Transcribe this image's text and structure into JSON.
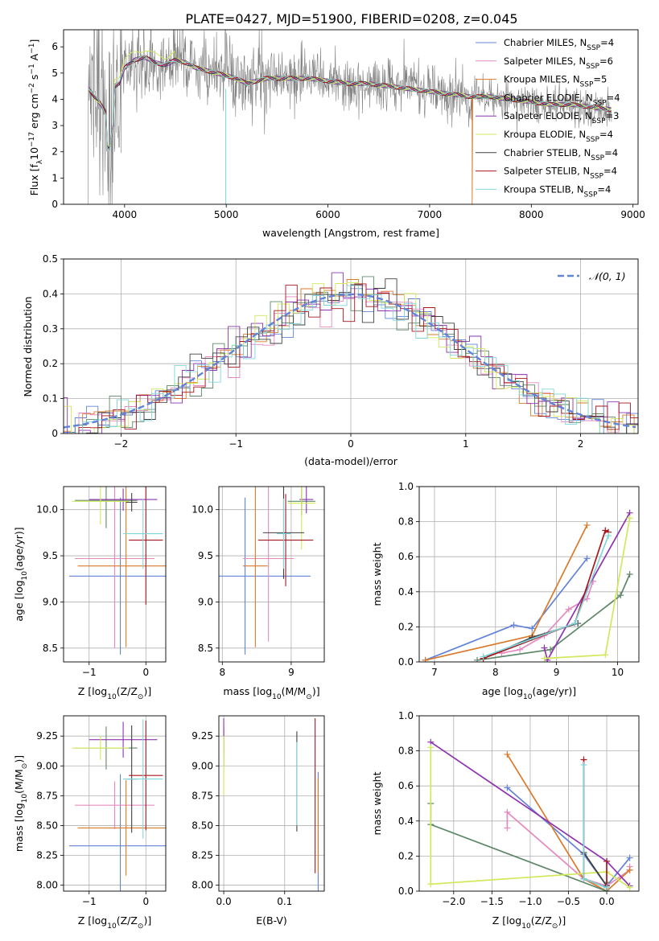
{
  "figure": {
    "title": "PLATE=0427, MJD=51900, FIBERID=0208, z=0.045"
  },
  "legend": {
    "entries": [
      {
        "label": "Chabrier MILES, N",
        "sub": "SSP",
        "n": "=4",
        "color": "#6283d8"
      },
      {
        "label": "Salpeter MILES, N",
        "sub": "SSP",
        "n": "=6",
        "color": "#e58ac1"
      },
      {
        "label": "Kroupa MILES, N",
        "sub": "SSP",
        "n": "=5",
        "color": "#d97a2a"
      },
      {
        "label": "Chabrier ELODIE, N",
        "sub": "SSP",
        "n": "=4",
        "color": "#5e8868"
      },
      {
        "label": "Salpeter ELODIE, N",
        "sub": "SSP",
        "n": "=3",
        "color": "#8e34b0"
      },
      {
        "label": "Kroupa ELODIE, N",
        "sub": "SSP",
        "n": "=4",
        "color": "#cfe95a"
      },
      {
        "label": "Chabrier STELIB, N",
        "sub": "SSP",
        "n": "=4",
        "color": "#404040"
      },
      {
        "label": "Salpeter STELIB, N",
        "sub": "SSP",
        "n": "=4",
        "color": "#a8171e"
      },
      {
        "label": "Kroupa STELIB, N",
        "sub": "SSP",
        "n": "=4",
        "color": "#7fd6da"
      }
    ]
  },
  "chart_data": [
    {
      "type": "line",
      "id": "spectrum",
      "xlabel": "wavelength [Angstrom, rest frame]",
      "ylabel": "Flux [f",
      "ylabel_sub": "λ",
      "ylabel_rest": "10",
      "ylabel_sup1": "−17",
      "ylabel_mid": " erg cm",
      "ylabel_sup2": "−2",
      "ylabel_s": " s",
      "ylabel_sup3": "−1",
      "ylabel_A": " A",
      "ylabel_sup4": "−1",
      "ylabel_end": "]",
      "xlim": [
        3400,
        9050
      ],
      "ylim": [
        0,
        6.65
      ],
      "xticks": [
        4000,
        5000,
        6000,
        7000,
        8000,
        9000
      ],
      "yticks": [
        0,
        1,
        2,
        3,
        4,
        5,
        6
      ],
      "data_color": "#808080",
      "model_points": {
        "x": [
          3650,
          3700,
          3750,
          3800,
          3850,
          3900,
          3950,
          4000,
          4100,
          4200,
          4300,
          4400,
          4500,
          4600,
          4700,
          4800,
          4900,
          5000,
          5100,
          5200,
          5300,
          5400,
          5500,
          5600,
          5800,
          6000,
          6200,
          6400,
          6600,
          6800,
          7000,
          7200,
          7400,
          7600,
          7800,
          8000,
          8200,
          8400,
          8600,
          8800
        ],
        "y": [
          4.4,
          4.1,
          3.9,
          3.6,
          3.3,
          4.5,
          4.6,
          5.2,
          5.5,
          5.6,
          5.4,
          5.3,
          5.5,
          5.4,
          5.2,
          5.1,
          5.0,
          4.9,
          4.8,
          4.6,
          4.7,
          4.8,
          4.8,
          4.8,
          4.8,
          4.7,
          4.6,
          4.6,
          4.5,
          4.4,
          4.3,
          4.2,
          4.1,
          4.1,
          4.0,
          3.9,
          3.8,
          3.8,
          3.7,
          3.6
        ]
      }
    },
    {
      "type": "histogram",
      "id": "residuals",
      "xlabel": "(data-model)/error",
      "ylabel": "Normed distribution",
      "xlim": [
        -2.5,
        2.5
      ],
      "ylim": [
        0,
        0.5
      ],
      "xticks": [
        -2,
        -1,
        0,
        1,
        2
      ],
      "yticks": [
        0.0,
        0.1,
        0.2,
        0.3,
        0.4,
        0.5
      ],
      "legend": {
        "label": "𝒩(0, 1)",
        "color": "#6283d8"
      },
      "bin_width": 0.1
    },
    {
      "type": "scatter",
      "id": "age-vs-z",
      "xlabel": "Z [log",
      "xlabel_sub": "10",
      "xlabel_rest": "(Z/Z",
      "xlabel_end": ")]",
      "ylabel": "age  [log",
      "ylabel_sub": "10",
      "ylabel_rest": "(age/yr)]",
      "xlim": [
        -1.45,
        0.35
      ],
      "ylim": [
        8.35,
        10.25
      ],
      "xticks": [
        -1,
        0
      ],
      "yticks": [
        8.5,
        9.0,
        9.5,
        10.0
      ],
      "points": [
        {
          "x": -0.45,
          "y": 9.28,
          "xerr": 0.9,
          "yerr": 0.85,
          "series": 0
        },
        {
          "x": -0.55,
          "y": 9.47,
          "xerr": 0.7,
          "yerr": 0.97,
          "series": 1
        },
        {
          "x": -0.35,
          "y": 9.39,
          "xerr": 0.85,
          "yerr": 0.88,
          "series": 2
        },
        {
          "x": -0.7,
          "y": 10.1,
          "xerr": 0.55,
          "yerr": 0.3,
          "series": 3
        },
        {
          "x": -0.4,
          "y": 10.11,
          "xerr": 0.6,
          "yerr": 0.12,
          "series": 4
        },
        {
          "x": -0.8,
          "y": 10.09,
          "xerr": 0.5,
          "yerr": 0.25,
          "series": 5
        },
        {
          "x": -0.25,
          "y": 10.08,
          "xerr": 0.1,
          "yerr": 0.1,
          "series": 6
        },
        {
          "x": 0.0,
          "y": 9.67,
          "xerr": 0.3,
          "yerr": 0.7,
          "series": 7
        },
        {
          "x": -0.05,
          "y": 9.74,
          "xerr": 0.35,
          "yerr": 0.38,
          "series": 8
        }
      ]
    },
    {
      "type": "scatter",
      "id": "age-vs-mass",
      "xlabel": "mass [log",
      "xlabel_sub": "10",
      "xlabel_rest": "(M/M",
      "xlabel_end": ")]",
      "xlim": [
        7.95,
        9.48
      ],
      "ylim": [
        8.35,
        10.25
      ],
      "xticks": [
        8,
        9
      ],
      "yticks": [
        8.5,
        9.0,
        9.5,
        10.0
      ],
      "points": [
        {
          "x": 8.33,
          "y": 9.28,
          "xerr": 0.95,
          "yerr": 0.85,
          "series": 0
        },
        {
          "x": 8.67,
          "y": 9.47,
          "xerr": 0.37,
          "yerr": 0.9,
          "series": 1
        },
        {
          "x": 8.48,
          "y": 9.39,
          "xerr": 0.18,
          "yerr": 0.88,
          "series": 2
        },
        {
          "x": 9.15,
          "y": 10.09,
          "xerr": 0.2,
          "yerr": 0.15,
          "series": 3
        },
        {
          "x": 9.22,
          "y": 10.11,
          "xerr": 0.1,
          "yerr": 0.15,
          "series": 4
        },
        {
          "x": 9.15,
          "y": 10.07,
          "xerr": 0.2,
          "yerr": 0.5,
          "series": 5
        },
        {
          "x": 8.89,
          "y": 9.75,
          "xerr": 0.3,
          "yerr": 0.5,
          "series": 6
        },
        {
          "x": 8.92,
          "y": 9.67,
          "xerr": 0.4,
          "yerr": 0.5,
          "series": 7
        },
        {
          "x": 8.89,
          "y": 9.74,
          "xerr": 0.1,
          "yerr": 0.38,
          "series": 8
        }
      ]
    },
    {
      "type": "line",
      "id": "mass-weight-vs-age",
      "xlabel": "age  [log",
      "xlabel_sub": "10",
      "xlabel_rest": "(age/yr)]",
      "ylabel": "mass weight",
      "xlim": [
        6.75,
        10.35
      ],
      "ylim": [
        0,
        1.0
      ],
      "xticks": [
        7,
        8,
        9,
        10
      ],
      "yticks": [
        0.0,
        0.2,
        0.4,
        0.6,
        0.8,
        1.0
      ],
      "series": [
        {
          "x": [
            6.85,
            8.3,
            8.6,
            9.5
          ],
          "y": [
            0.01,
            0.21,
            0.19,
            0.59
          ],
          "idx": 0
        },
        {
          "x": [
            8.1,
            8.4,
            8.8,
            9.2,
            9.5,
            9.6
          ],
          "y": [
            0.05,
            0.07,
            0.15,
            0.3,
            0.36,
            0.46
          ],
          "idx": 1
        },
        {
          "x": [
            6.85,
            8.6,
            9.5
          ],
          "y": [
            0.01,
            0.15,
            0.78
          ],
          "idx": 2
        },
        {
          "x": [
            7.7,
            8.9,
            10.05,
            10.2
          ],
          "y": [
            0.01,
            0.07,
            0.38,
            0.5
          ],
          "idx": 3
        },
        {
          "x": [
            8.8,
            8.85,
            10.2
          ],
          "y": [
            0.08,
            0.01,
            0.85
          ],
          "idx": 4
        },
        {
          "x": [
            8.8,
            9.8,
            10.2
          ],
          "y": [
            0.02,
            0.04,
            0.82
          ],
          "idx": 5
        },
        {
          "x": [
            7.8,
            8.6,
            9.35
          ],
          "y": [
            0.02,
            0.14,
            0.22
          ],
          "idx": 6
        },
        {
          "x": [
            7.8,
            9.3,
            9.8,
            9.85
          ],
          "y": [
            0.02,
            0.22,
            0.75,
            0.74
          ],
          "idx": 7
        },
        {
          "x": [
            7.8,
            9.3,
            9.85
          ],
          "y": [
            0.03,
            0.22,
            0.72
          ],
          "idx": 8
        }
      ]
    },
    {
      "type": "scatter",
      "id": "mass-vs-z",
      "xlabel": "Z [log",
      "xlabel_sub": "10",
      "xlabel_rest": "(Z/Z",
      "xlabel_end": ")]",
      "ylabel": "mass [log",
      "ylabel_sub": "10",
      "ylabel_rest": "(M/M",
      "ylabel_end": ")]",
      "xlim": [
        -1.45,
        0.35
      ],
      "ylim": [
        7.95,
        9.42
      ],
      "xticks": [
        -1,
        0
      ],
      "yticks": [
        8.0,
        8.25,
        8.5,
        8.75,
        9.0,
        9.25
      ],
      "points": [
        {
          "x": -0.45,
          "y": 8.33,
          "xerr": 0.9,
          "yerr": 0.6,
          "series": 0
        },
        {
          "x": -0.55,
          "y": 8.67,
          "xerr": 0.7,
          "yerr": 0.2,
          "series": 1
        },
        {
          "x": -0.35,
          "y": 8.48,
          "xerr": 0.85,
          "yerr": 0.4,
          "series": 2
        },
        {
          "x": -0.7,
          "y": 9.15,
          "xerr": 0.55,
          "yerr": 0.18,
          "series": 3
        },
        {
          "x": -0.4,
          "y": 9.22,
          "xerr": 0.6,
          "yerr": 0.15,
          "series": 4
        },
        {
          "x": -0.8,
          "y": 9.15,
          "xerr": 0.5,
          "yerr": 0.1,
          "series": 5
        },
        {
          "x": -0.25,
          "y": 8.89,
          "xerr": 0.1,
          "yerr": 0.45,
          "series": 6
        },
        {
          "x": 0.0,
          "y": 8.92,
          "xerr": 0.3,
          "yerr": 0.46,
          "series": 7
        },
        {
          "x": -0.05,
          "y": 8.89,
          "xerr": 0.35,
          "yerr": 0.5,
          "series": 8
        }
      ]
    },
    {
      "type": "scatter",
      "id": "mass-vs-ebv",
      "xlabel": "E(B-V)",
      "xlim": [
        -0.008,
        0.165
      ],
      "ylim": [
        7.95,
        9.42
      ],
      "xticks": [
        0.0,
        0.1
      ],
      "yticks": [
        8.0,
        8.25,
        8.5,
        8.75,
        9.0,
        9.25
      ],
      "points": [
        {
          "x": 0.155,
          "y": 8.45,
          "yerr": 0.5,
          "series": 0
        },
        {
          "x": 0.0,
          "y": 9.15,
          "yerr": 0.2,
          "series": 1
        },
        {
          "x": 0.155,
          "y": 8.5,
          "yerr": 0.4,
          "series": 2
        },
        {
          "x": 0.0,
          "y": 9.15,
          "yerr": 0.15,
          "series": 3
        },
        {
          "x": 0.0,
          "y": 9.25,
          "yerr": 0.15,
          "series": 4
        },
        {
          "x": 0.0,
          "y": 9.0,
          "yerr": 0.25,
          "series": 5
        },
        {
          "x": 0.12,
          "y": 8.87,
          "yerr": 0.42,
          "series": 6
        },
        {
          "x": 0.15,
          "y": 8.75,
          "yerr": 0.65,
          "series": 7
        },
        {
          "x": 0.12,
          "y": 8.85,
          "yerr": 0.35,
          "series": 8
        }
      ]
    },
    {
      "type": "line",
      "id": "mass-weight-vs-z",
      "xlabel": "Z [log",
      "xlabel_sub": "10",
      "xlabel_rest": "(Z/Z",
      "xlabel_end": ")]",
      "ylabel": "mass weight",
      "xlim": [
        -2.45,
        0.42
      ],
      "ylim": [
        0,
        1.0
      ],
      "xticks": [
        -2.0,
        -1.5,
        -1.0,
        -0.5,
        0.0
      ],
      "yticks": [
        0.0,
        0.2,
        0.4,
        0.6,
        0.8,
        1.0
      ],
      "series": [
        {
          "x": [
            -1.3,
            -0.3,
            0.0,
            0.3
          ],
          "y": [
            0.59,
            0.21,
            0.03,
            0.19
          ],
          "idx": 0
        },
        {
          "x": [
            -1.3,
            -1.3,
            -0.3,
            0.0,
            0.3,
            0.3
          ],
          "y": [
            0.36,
            0.45,
            0.07,
            0.03,
            0.12,
            0.14
          ],
          "idx": 1
        },
        {
          "x": [
            -1.3,
            -0.3,
            0.0,
            0.3
          ],
          "y": [
            0.78,
            0.07,
            0.0,
            0.12
          ],
          "idx": 2
        },
        {
          "x": [
            -2.3,
            -2.3,
            0.0,
            0.0
          ],
          "y": [
            0.5,
            0.38,
            0.0,
            0.05
          ],
          "idx": 3
        },
        {
          "x": [
            -2.3,
            0.0,
            0.3
          ],
          "y": [
            0.85,
            0.17,
            0.03
          ],
          "idx": 4
        },
        {
          "x": [
            -2.3,
            -2.3,
            0.0,
            0.3
          ],
          "y": [
            0.82,
            0.04,
            0.11,
            0.02
          ],
          "idx": 5
        },
        {
          "x": [
            -0.3,
            0.0
          ],
          "y": [
            0.22,
            0.03
          ],
          "idx": 6
        },
        {
          "x": [
            -0.3,
            -0.3,
            0.0,
            0.0
          ],
          "y": [
            0.75,
            0.07,
            0.02,
            0.17
          ],
          "idx": 7
        },
        {
          "x": [
            -0.3,
            -0.3,
            0.0
          ],
          "y": [
            0.72,
            0.07,
            0.02
          ],
          "idx": 8
        }
      ]
    }
  ]
}
